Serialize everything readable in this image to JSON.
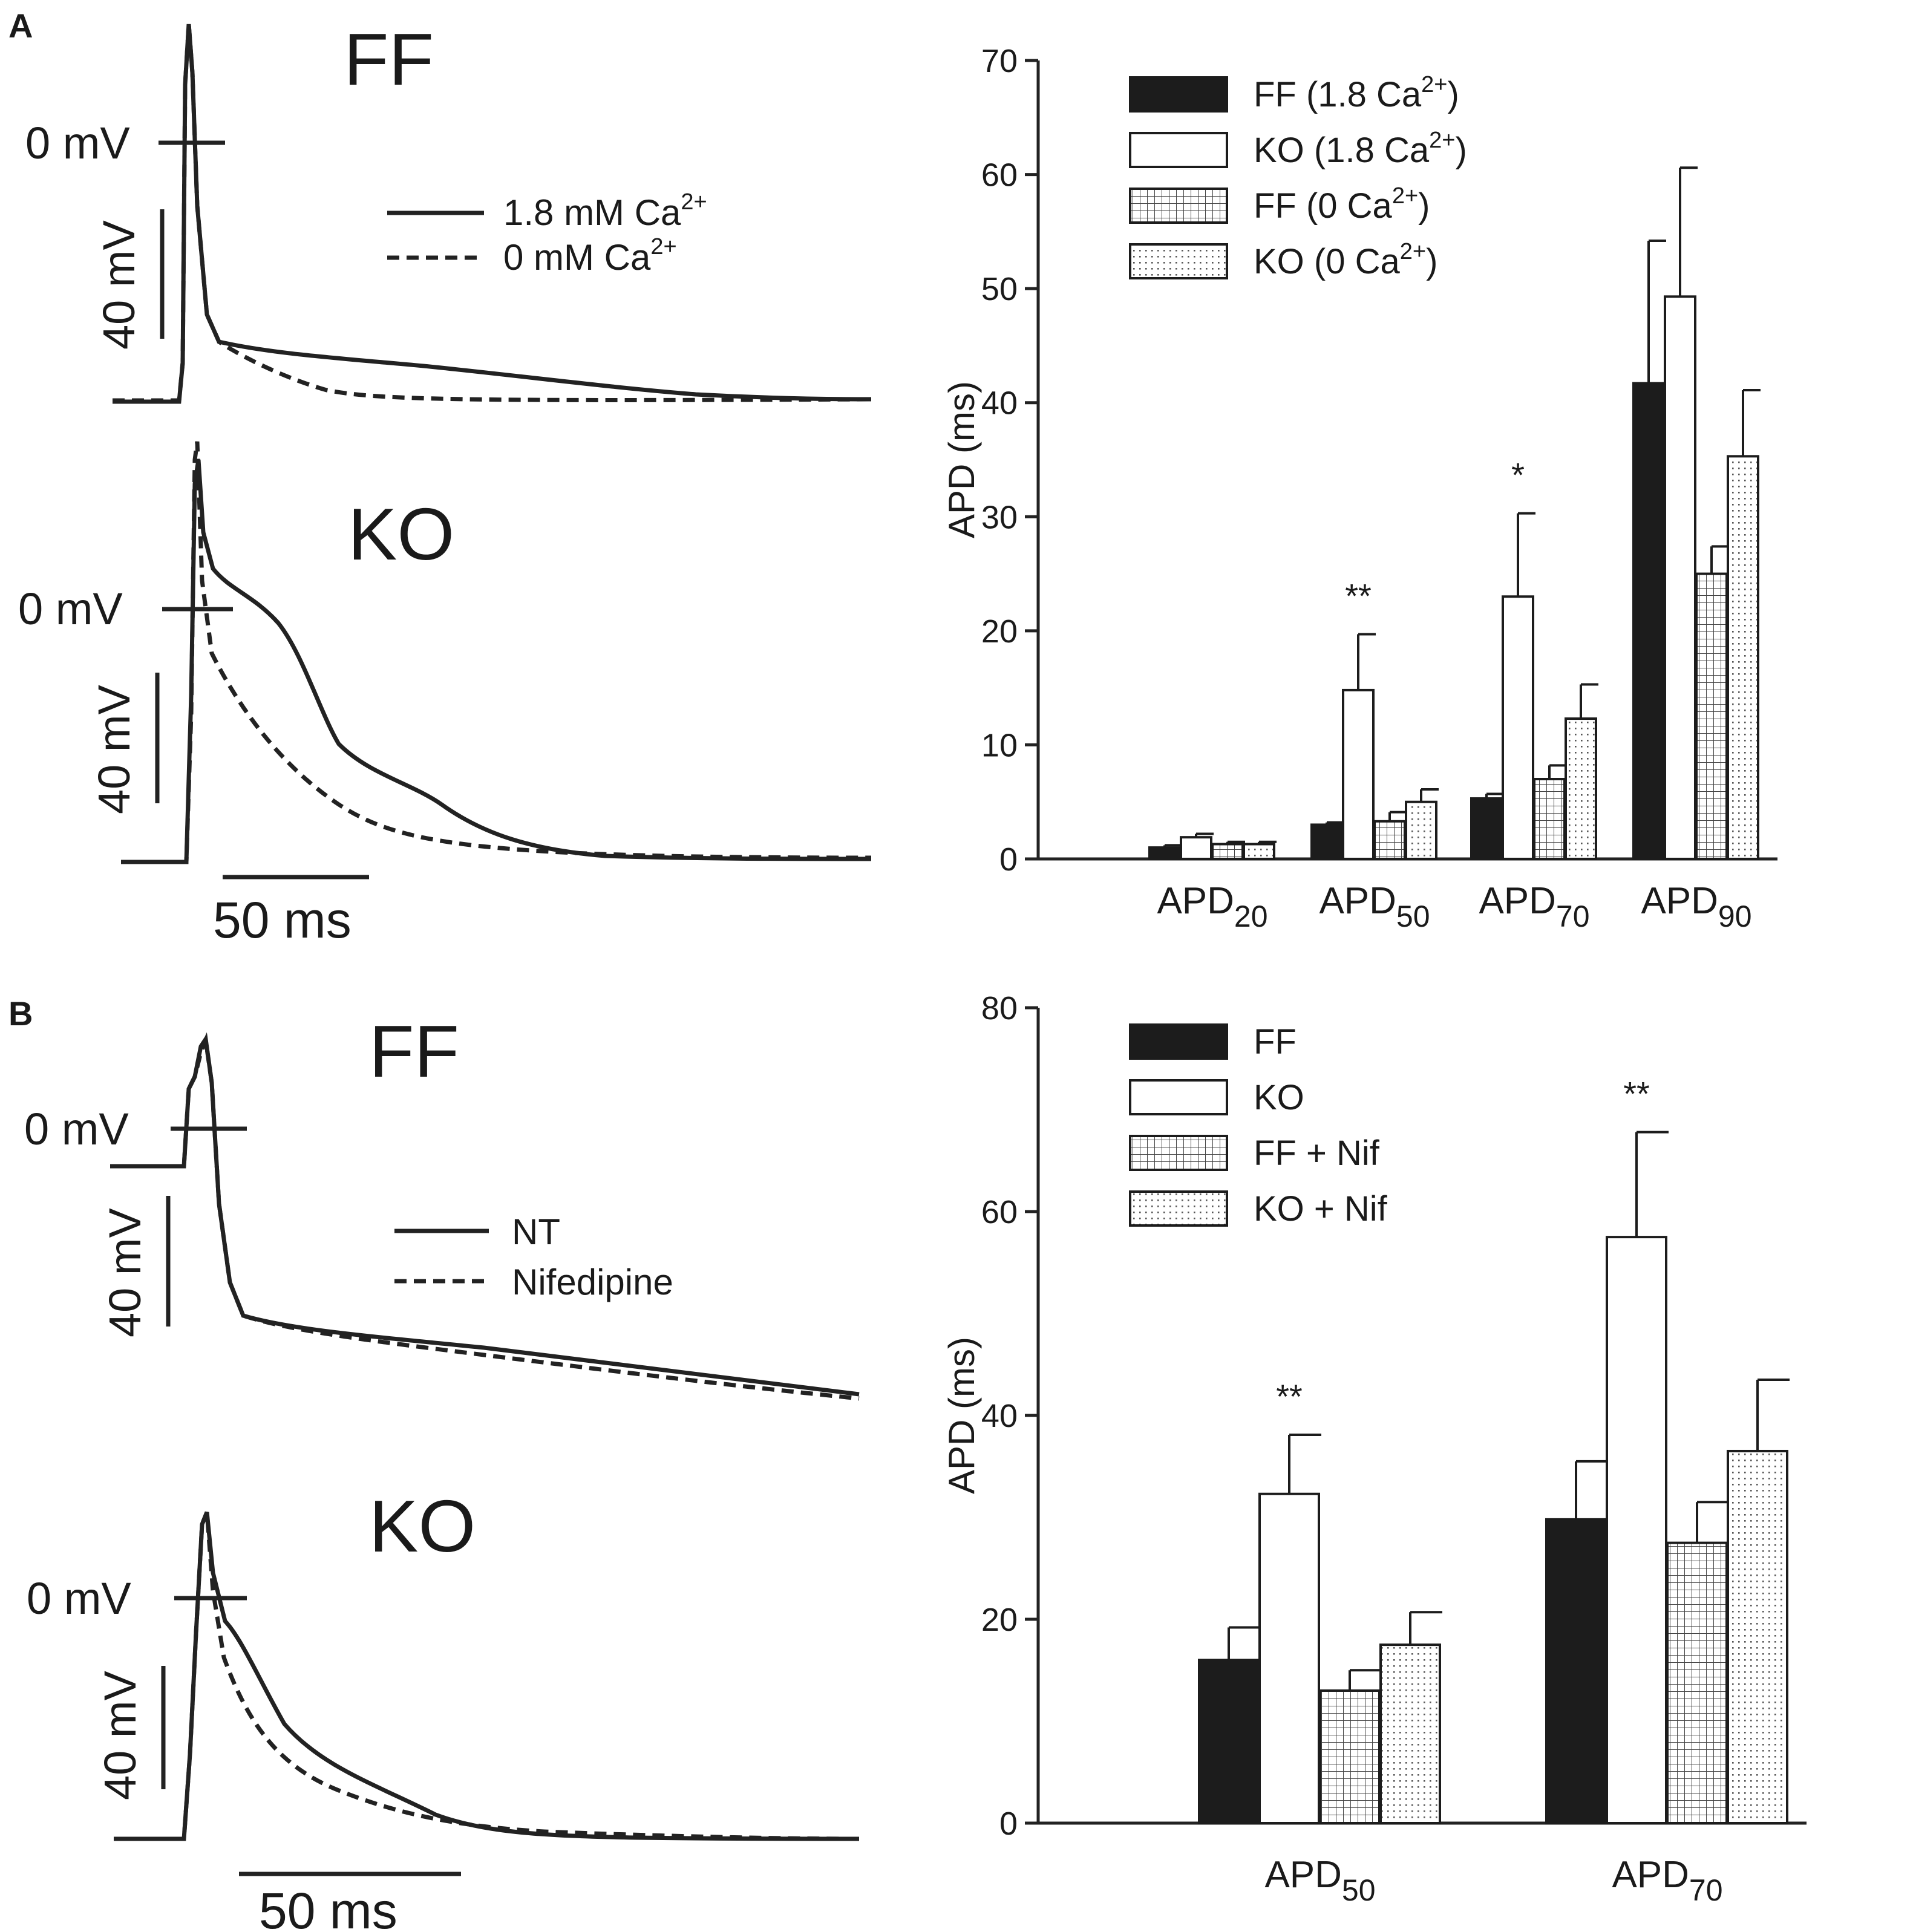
{
  "panels": [
    {
      "id": "A",
      "letter": "A",
      "traces": {
        "scale_time": "50 ms",
        "groups": [
          {
            "label": "FF",
            "zero_label": "0 mV",
            "scale_voltage": "40 mV",
            "type": "ff"
          },
          {
            "label": "KO",
            "zero_label": "0 mV",
            "scale_voltage": "40 mV",
            "type": "ko"
          }
        ],
        "legend": [
          {
            "style": "solid",
            "text": "1.8 mM Ca",
            "sup": "2+"
          },
          {
            "style": "dashed",
            "text": "0 mM Ca",
            "sup": "2+"
          }
        ]
      }
    },
    {
      "id": "B",
      "letter": "B",
      "traces": {
        "scale_time": "50 ms",
        "groups": [
          {
            "label": "FF",
            "zero_label": "0 mV",
            "scale_voltage": "40 mV",
            "type": "ff"
          },
          {
            "label": "KO",
            "zero_label": "0 mV",
            "scale_voltage": "40 mV",
            "type": "ko"
          }
        ],
        "legend": [
          {
            "style": "solid",
            "text": "NT",
            "sup": ""
          },
          {
            "style": "dashed",
            "text": "Nifedipine",
            "sup": ""
          }
        ]
      }
    }
  ],
  "chart_data": [
    {
      "panel": "A",
      "type": "bar",
      "ylabel": "APD (ms)",
      "ylim": [
        0,
        70
      ],
      "yticks": [
        0,
        10,
        20,
        30,
        40,
        50,
        60,
        70
      ],
      "categories": [
        {
          "base": "APD",
          "sub": "20"
        },
        {
          "base": "APD",
          "sub": "50"
        },
        {
          "base": "APD",
          "sub": "70"
        },
        {
          "base": "APD",
          "sub": "90"
        }
      ],
      "series": [
        {
          "name": "FF (1.8 Ca",
          "sup": "2+",
          "tail": ")",
          "fill": "solid",
          "values": [
            1.0,
            3.0,
            5.3,
            41.7
          ],
          "errors": [
            0.2,
            0.2,
            0.4,
            12.5
          ]
        },
        {
          "name": "KO (1.8 Ca",
          "sup": "2+",
          "tail": ")",
          "fill": "open",
          "values": [
            1.9,
            14.8,
            23.0,
            49.3
          ],
          "errors": [
            0.3,
            4.9,
            7.3,
            11.3
          ]
        },
        {
          "name": "FF (0 Ca",
          "sup": "2+",
          "tail": ")",
          "fill": "grid",
          "values": [
            1.3,
            3.3,
            7.0,
            25.0
          ],
          "errors": [
            0.2,
            0.8,
            1.2,
            2.4
          ]
        },
        {
          "name": "KO (0 Ca",
          "sup": "2+",
          "tail": ")",
          "fill": "dots",
          "values": [
            1.3,
            5.0,
            12.3,
            35.3
          ],
          "errors": [
            0.2,
            1.1,
            3.0,
            5.8
          ]
        }
      ],
      "annotations": [
        {
          "text": "**",
          "category": 1,
          "series": 1
        },
        {
          "text": "*",
          "category": 2,
          "series": 1
        }
      ]
    },
    {
      "panel": "B",
      "type": "bar",
      "ylabel": "APD (ms)",
      "ylim": [
        0,
        80
      ],
      "yticks": [
        0,
        20,
        40,
        60,
        80
      ],
      "categories": [
        {
          "base": "APD",
          "sub": "50"
        },
        {
          "base": "APD",
          "sub": "70"
        }
      ],
      "series": [
        {
          "name": "FF",
          "sup": "",
          "tail": "",
          "fill": "solid",
          "values": [
            16.0,
            29.8
          ],
          "errors": [
            3.2,
            5.7
          ]
        },
        {
          "name": "KO",
          "sup": "",
          "tail": "",
          "fill": "open",
          "values": [
            32.3,
            57.5
          ],
          "errors": [
            5.8,
            10.3
          ]
        },
        {
          "name": "FF + Nif",
          "sup": "",
          "tail": "",
          "fill": "grid",
          "values": [
            13.0,
            27.5
          ],
          "errors": [
            2.0,
            4.0
          ]
        },
        {
          "name": "KO + Nif",
          "sup": "",
          "tail": "",
          "fill": "dots",
          "values": [
            17.5,
            36.5
          ],
          "errors": [
            3.2,
            7.0
          ]
        }
      ],
      "annotations": [
        {
          "text": "**",
          "category": 0,
          "series": 1
        },
        {
          "text": "**",
          "category": 1,
          "series": 1
        }
      ]
    }
  ]
}
